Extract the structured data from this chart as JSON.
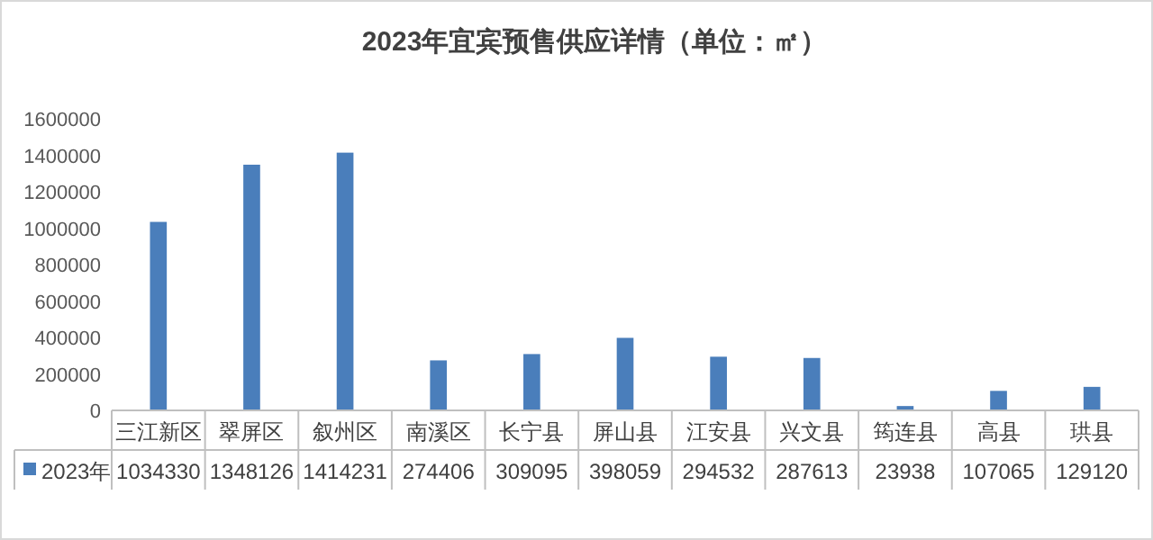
{
  "chart_data": {
    "type": "bar",
    "title": "2023年宜宾预售供应详情（单位：㎡）",
    "categories": [
      "三江新区",
      "翠屏区",
      "叙州区",
      "南溪区",
      "长宁县",
      "屏山县",
      "江安县",
      "兴文县",
      "筠连县",
      "高县",
      "珙县"
    ],
    "series": [
      {
        "name": "2023年",
        "color": "#4a7ebb",
        "values": [
          1034330,
          1348126,
          1414231,
          274406,
          309095,
          398059,
          294532,
          287613,
          23938,
          107065,
          129120
        ]
      }
    ],
    "ylim": [
      0,
      1600000
    ],
    "yticks": [
      0,
      200000,
      400000,
      600000,
      800000,
      1000000,
      1200000,
      1400000,
      1600000
    ],
    "data_labels": true,
    "legend": "bottom"
  }
}
